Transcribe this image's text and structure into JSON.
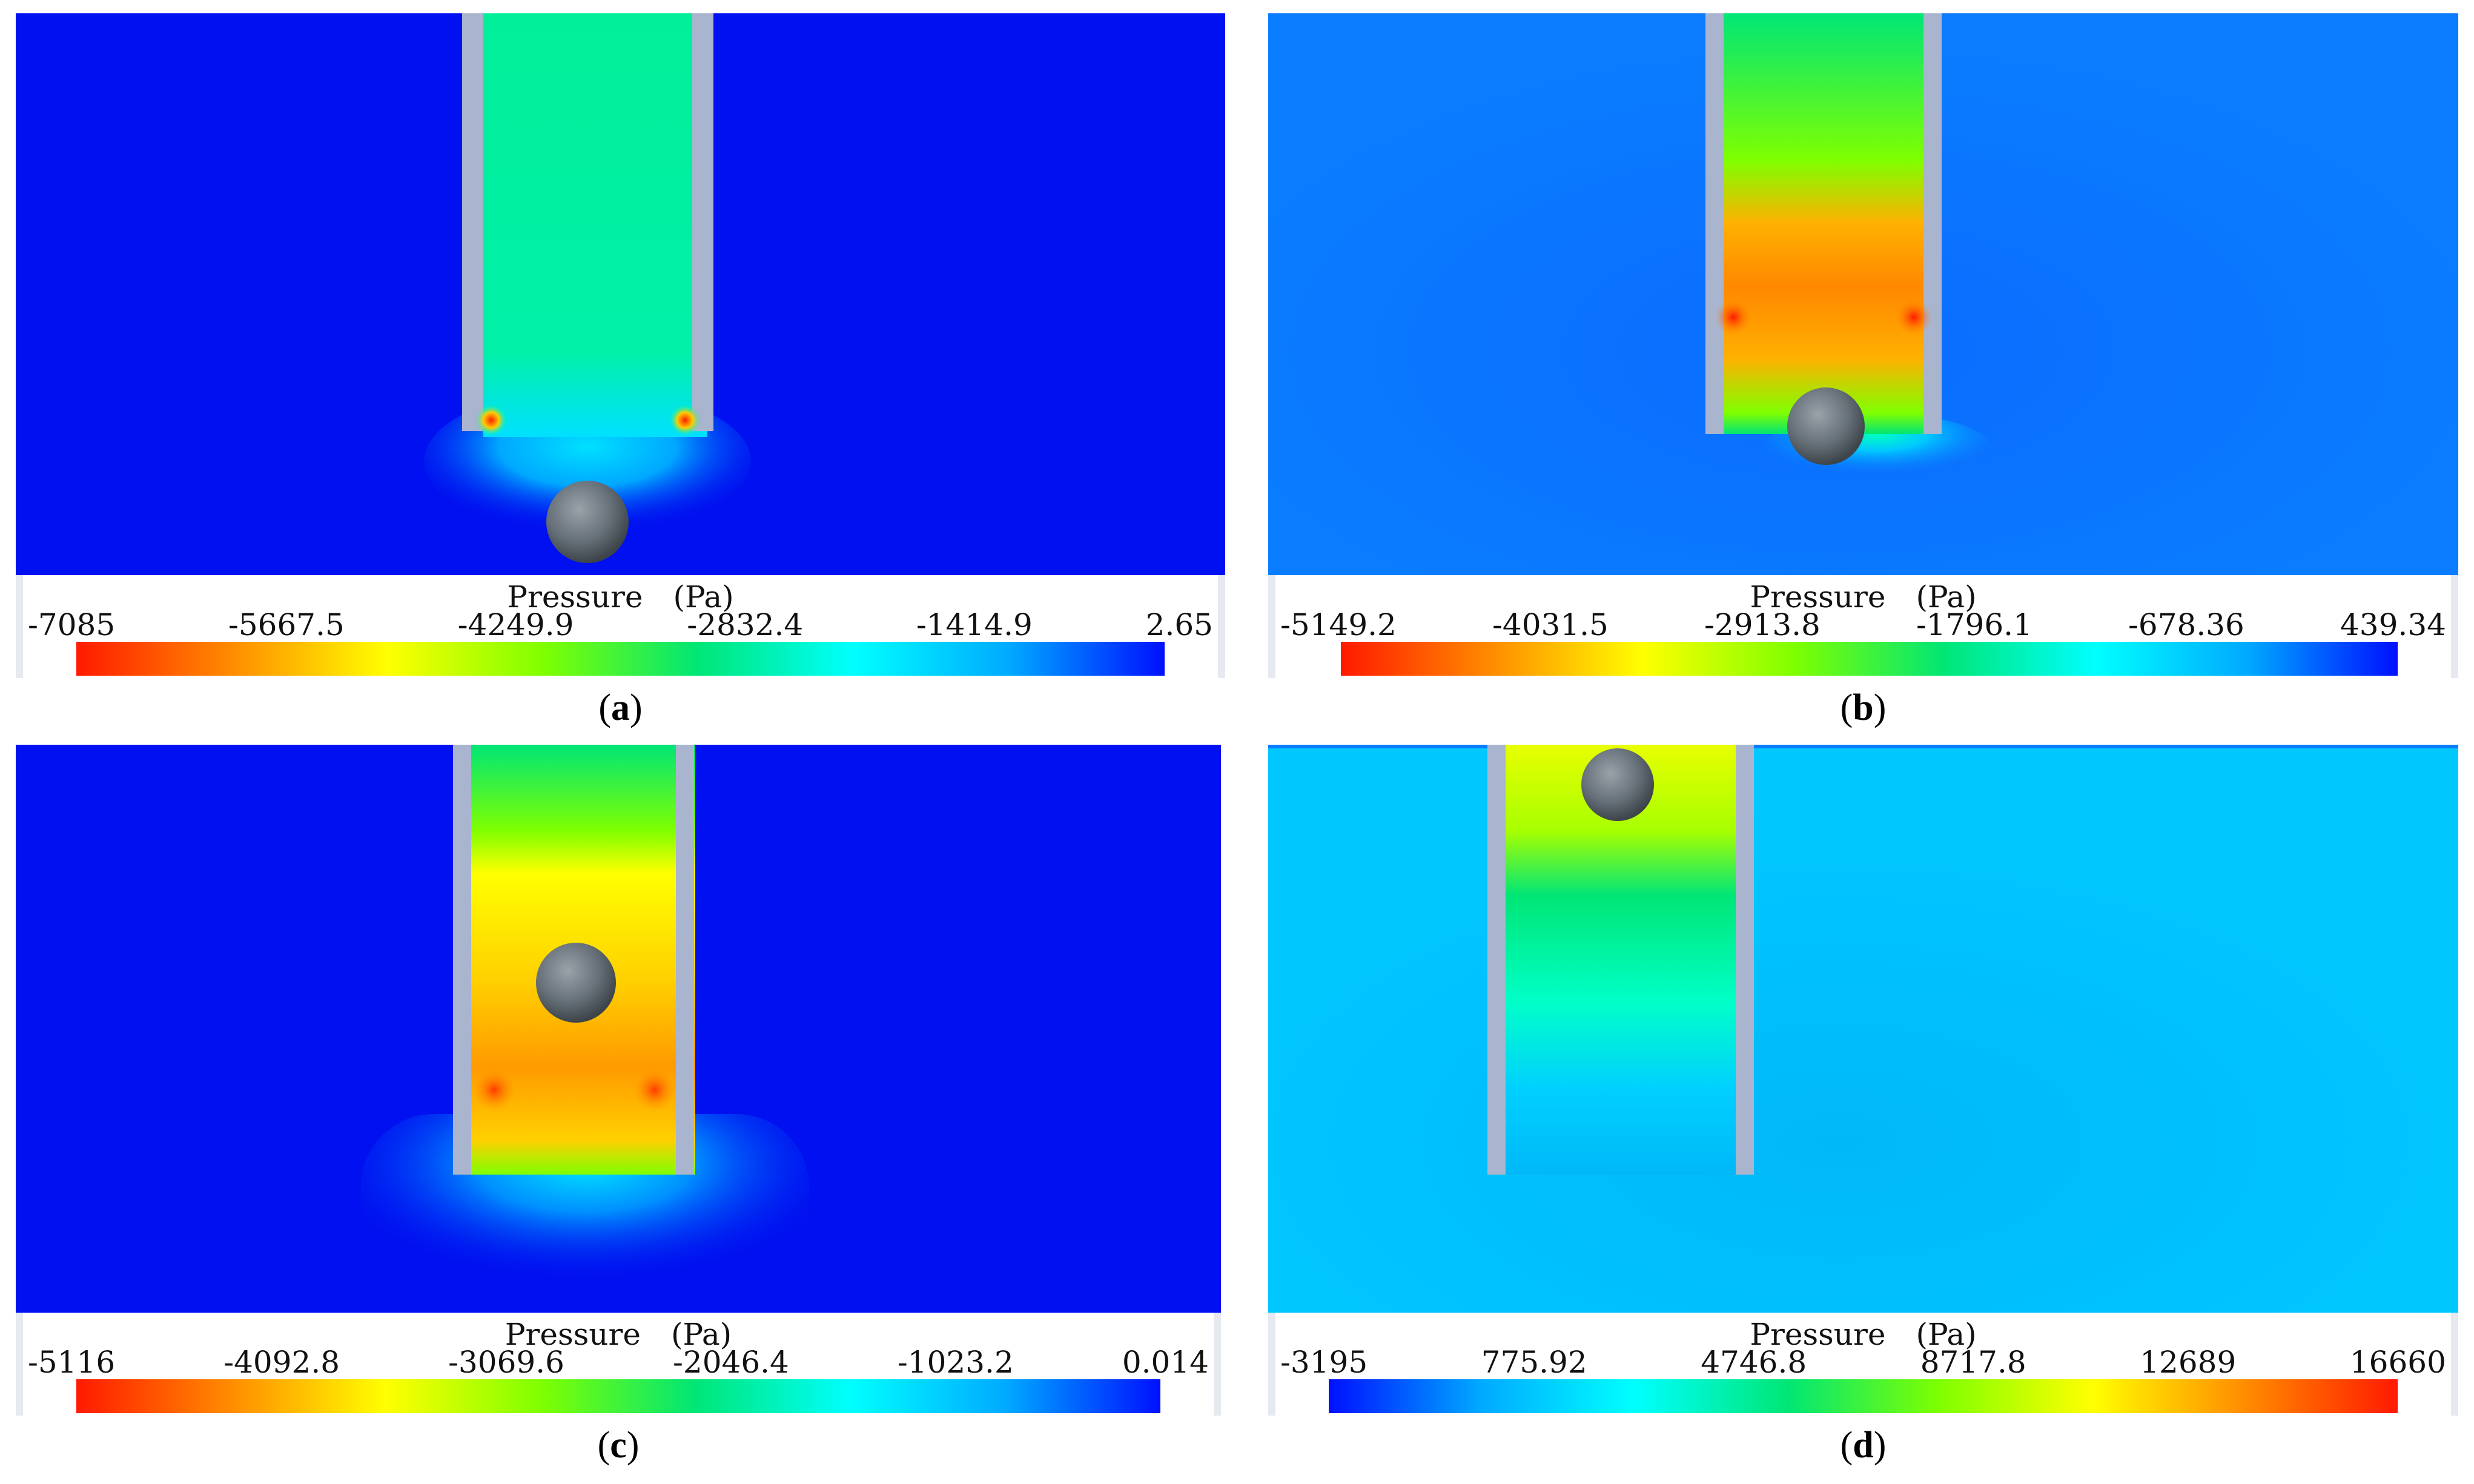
{
  "panels": [
    {
      "id": "a",
      "legend_title": "Pressure　(Pa)",
      "ticks": [
        "-7085",
        "-5667.5",
        "-4249.9",
        "-2832.4",
        "-1414.9",
        "2.65"
      ],
      "colorbar_direction": "red-to-blue",
      "caption_open": "(",
      "caption_letter": "a",
      "caption_close": ")"
    },
    {
      "id": "b",
      "legend_title": "Pressure　(Pa)",
      "ticks": [
        "-5149.2",
        "-4031.5",
        "-2913.8",
        "-1796.1",
        "-678.36",
        "439.34"
      ],
      "colorbar_direction": "red-to-blue",
      "caption_open": "(",
      "caption_letter": "b",
      "caption_close": ")"
    },
    {
      "id": "c",
      "legend_title": "Pressure　(Pa)",
      "ticks": [
        "-5116",
        "-4092.8",
        "-3069.6",
        "-2046.4",
        "-1023.2",
        "0.014"
      ],
      "colorbar_direction": "red-to-blue",
      "caption_open": "(",
      "caption_letter": "c",
      "caption_close": ")"
    },
    {
      "id": "d",
      "legend_title": "Pressure　(Pa)",
      "ticks": [
        "-3195",
        "775.92",
        "4746.8",
        "8717.8",
        "12689",
        "16660"
      ],
      "colorbar_direction": "blue-to-red",
      "caption_open": "(",
      "caption_letter": "d",
      "caption_close": ")"
    }
  ],
  "colors": {
    "background_a": "#0010f0",
    "background_b": "#0a7cff",
    "background_c": "#0010f0",
    "background_d": "#00c8ff",
    "tube_wall": "#a9b4cf",
    "sphere": "#6f7880"
  }
}
